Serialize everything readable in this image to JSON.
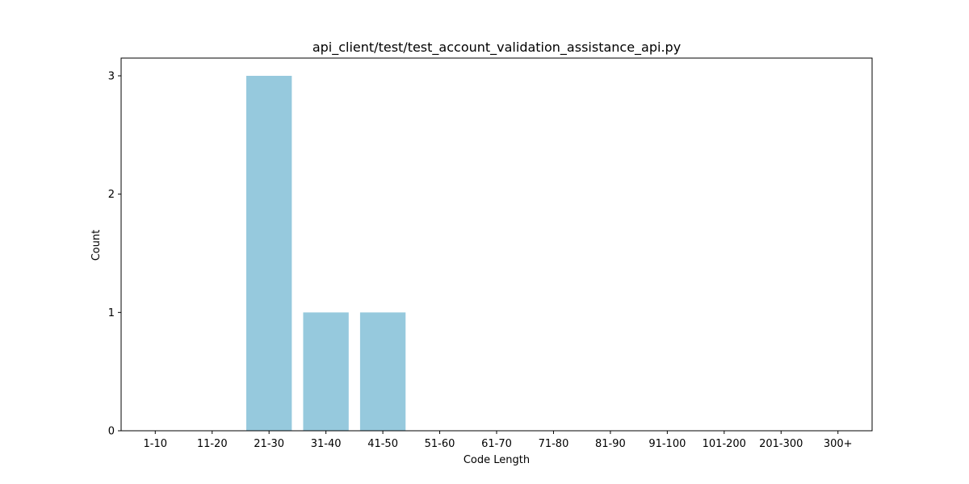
{
  "chart_data": {
    "type": "bar",
    "title": "api_client/test/test_account_validation_assistance_api.py",
    "xlabel": "Code Length",
    "ylabel": "Count",
    "categories": [
      "1-10",
      "11-20",
      "21-30",
      "31-40",
      "41-50",
      "51-60",
      "61-70",
      "71-80",
      "81-90",
      "91-100",
      "101-200",
      "201-300",
      "300+"
    ],
    "values": [
      0,
      0,
      3,
      1,
      1,
      0,
      0,
      0,
      0,
      0,
      0,
      0,
      0
    ],
    "ylim": [
      0,
      3.15
    ],
    "yticks": [
      0,
      1,
      2,
      3
    ],
    "grid": false,
    "bar_color": "#96c9dd"
  }
}
